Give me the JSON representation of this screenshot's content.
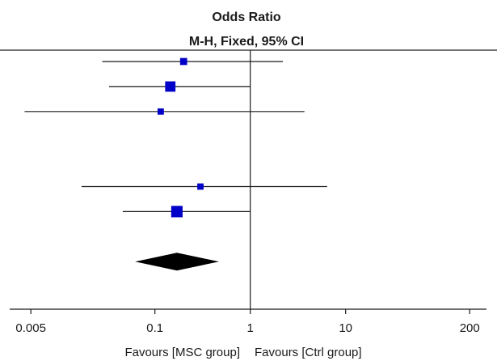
{
  "chart_data": {
    "type": "forest",
    "title": "Odds Ratio",
    "subtitle": "M-H, Fixed, 95% CI",
    "scale": "log",
    "xlim": [
      0.003,
      300
    ],
    "reference_line": 1,
    "ticks": [
      {
        "value": 0.005,
        "label": "0.005"
      },
      {
        "value": 0.1,
        "label": "0.1"
      },
      {
        "value": 1,
        "label": "1"
      },
      {
        "value": 10,
        "label": "10"
      },
      {
        "value": 200,
        "label": "200"
      }
    ],
    "left_label": "Favours [MSC group]",
    "right_label": "Favours [Ctrl group]",
    "studies": [
      {
        "or": 0.2,
        "lower": 0.028,
        "upper": 2.2,
        "weight": 0.3
      },
      {
        "or": 0.145,
        "lower": 0.033,
        "upper": 1.0,
        "weight": 0.75
      },
      {
        "or": 0.115,
        "lower": 0.0043,
        "upper": 3.7,
        "weight": 0.2
      },
      {
        "or": 0.3,
        "lower": 0.017,
        "upper": 6.4,
        "weight": 0.2
      },
      {
        "or": 0.17,
        "lower": 0.046,
        "upper": 1.0,
        "weight": 0.9
      }
    ],
    "study_rows": [
      0,
      1,
      2,
      5,
      6
    ],
    "pooled": {
      "or": 0.17,
      "lower": 0.062,
      "upper": 0.47
    },
    "colors": {
      "square": "#0000c8",
      "line": "#1a1a1a",
      "diamond": "#000000"
    }
  }
}
